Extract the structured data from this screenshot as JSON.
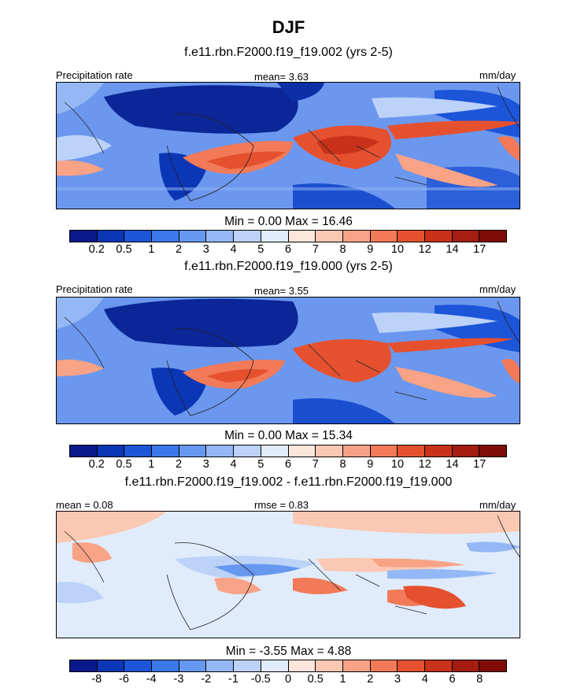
{
  "title": "DJF",
  "units_label": "mm/day",
  "panels": [
    {
      "title": "f.e11.rbn.F2000.f19_f19.002 (yrs 2-5)",
      "left_label": "Precipitation rate",
      "center_label": "mean=   3.63",
      "right_label": "mm/day",
      "minmax": "Min =   0.00 Max =  16.46",
      "mean": 3.63,
      "min": 0.0,
      "max": 16.46
    },
    {
      "title": "f.e11.rbn.F2000.f19_f19.000 (yrs 2-5)",
      "left_label": "Precipitation rate",
      "center_label": "mean=   3.55",
      "right_label": "mm/day",
      "minmax": "Min =   0.00 Max =  15.34",
      "mean": 3.55,
      "min": 0.0,
      "max": 15.34
    },
    {
      "title": "f.e11.rbn.F2000.f19_f19.002 - f.e11.rbn.F2000.f19_f19.000",
      "left_label": "mean =   0.08",
      "center_label": "rmse =   0.83",
      "right_label": "mm/day",
      "minmax": "Min =  -3.55 Max =   4.88",
      "mean": 0.08,
      "rmse": 0.83,
      "min": -3.55,
      "max": 4.88
    }
  ],
  "colorbar_precip": {
    "labels": [
      "0.2",
      "0.5",
      "1",
      "2",
      "3",
      "4",
      "5",
      "6",
      "7",
      "8",
      "9",
      "10",
      "12",
      "14",
      "17"
    ],
    "colors": [
      "#0a1a8c",
      "#0b36b5",
      "#1c55d8",
      "#3b78ea",
      "#6798f0",
      "#94b8f5",
      "#bcd2f8",
      "#e0ecfb",
      "#fde6dc",
      "#fbc8b3",
      "#f8a286",
      "#f27a58",
      "#e5512f",
      "#c8321a",
      "#a41d10",
      "#7f0d06"
    ]
  },
  "colorbar_diff": {
    "labels": [
      "-8",
      "-6",
      "-4",
      "-3",
      "-2",
      "-1",
      "-0.5",
      "0",
      "0.5",
      "1",
      "2",
      "3",
      "4",
      "6",
      "8"
    ],
    "colors": [
      "#0a1a8c",
      "#0b36b5",
      "#1c55d8",
      "#3b78ea",
      "#6798f0",
      "#94b8f5",
      "#bcd2f8",
      "#e0ecfb",
      "#fde6dc",
      "#fbc8b3",
      "#f8a286",
      "#f27a58",
      "#e5512f",
      "#c8321a",
      "#a41d10",
      "#7f0d06"
    ]
  }
}
